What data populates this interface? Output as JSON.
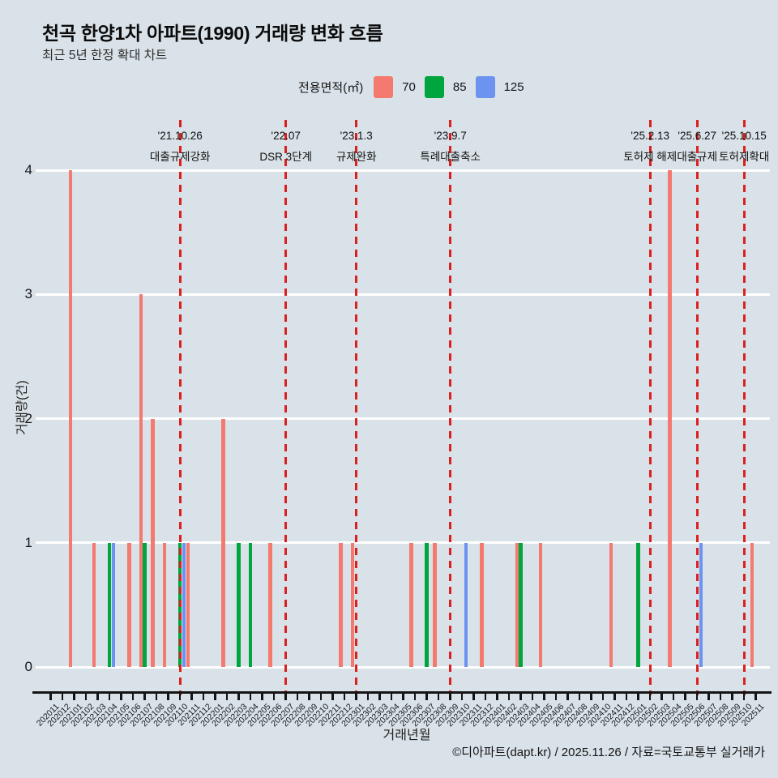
{
  "header": {
    "title": "천곡 한양1차 아파트(1990) 거래량 변화 흐름",
    "subtitle": "최근 5년 한정 확대 차트"
  },
  "legend": {
    "label": "전용면적(㎡)",
    "items": [
      {
        "name": "70",
        "color": "#f4796e"
      },
      {
        "name": "85",
        "color": "#00a63d"
      },
      {
        "name": "125",
        "color": "#6d93f0"
      }
    ]
  },
  "chart_data": {
    "type": "bar",
    "title": "천곡 한양1차 아파트(1990) 거래량 변화 흐름",
    "subtitle": "최근 5년 한정 확대 차트",
    "xlabel": "거래년월",
    "ylabel": "거래량(건)",
    "ylim": [
      0,
      4
    ],
    "yticks": [
      0,
      1,
      2,
      3,
      4
    ],
    "grid": "horizontal-white-on-gray",
    "legend_position": "top",
    "background": "#d9e2e8",
    "categories": [
      "202011",
      "202012",
      "202101",
      "202102",
      "202103",
      "202104",
      "202105",
      "202106",
      "202107",
      "202108",
      "202109",
      "202110",
      "202111",
      "202112",
      "202201",
      "202202",
      "202203",
      "202204",
      "202205",
      "202206",
      "202207",
      "202208",
      "202209",
      "202210",
      "202211",
      "202212",
      "202301",
      "202302",
      "202303",
      "202304",
      "202305",
      "202306",
      "202307",
      "202308",
      "202309",
      "202310",
      "202311",
      "202312",
      "202401",
      "202402",
      "202403",
      "202404",
      "202405",
      "202406",
      "202407",
      "202408",
      "202409",
      "202410",
      "202411",
      "202412",
      "202501",
      "202502",
      "202503",
      "202504",
      "202505",
      "202506",
      "202507",
      "202508",
      "202509",
      "202510",
      "202511"
    ],
    "series": [
      {
        "name": "70",
        "color": "#f4796e",
        "values_by_month": {
          "202101": 4,
          "202103": 1,
          "202106": 1,
          "202107": 3,
          "202108": 2,
          "202109": 1,
          "202111": 1,
          "202202": 2,
          "202206": 1,
          "202212": 1,
          "202301": 1,
          "202306": 1,
          "202308": 1,
          "202312": 1,
          "202403": 1,
          "202405": 1,
          "202411": 1,
          "202504": 4,
          "202511": 1
        }
      },
      {
        "name": "85",
        "color": "#00a63d",
        "values_by_month": {
          "202104": 1,
          "202107": 1,
          "202110": 1,
          "202203": 1,
          "202204": 1,
          "202307": 1,
          "202403": 1,
          "202501": 1
        }
      },
      {
        "name": "125",
        "color": "#6d93f0",
        "values_by_month": {
          "202104": 1,
          "202110": 1,
          "202310": 1,
          "202506": 1
        }
      }
    ],
    "events": [
      {
        "date": "'21.10.26",
        "label": "대출규제강화",
        "month": "202110"
      },
      {
        "date": "'22.07",
        "label": "DSR 3단계",
        "month": "202207"
      },
      {
        "date": "'23.1.3",
        "label": "규제완화",
        "month": "202301"
      },
      {
        "date": "'23.9.7",
        "label": "특례대출축소",
        "month": "202309"
      },
      {
        "date": "'25.2.13",
        "label": "토허제 해제",
        "month": "202502"
      },
      {
        "date": "'25.6.27",
        "label": "대출규제",
        "month": "202506"
      },
      {
        "date": "'25.10.15",
        "label": "토허제확대",
        "month": "202510"
      }
    ],
    "event_line_color": "#dc1f1f"
  },
  "footer": {
    "credit": "©디아파트(dapt.kr) / 2025.11.26 / 자료=국토교통부 실거래가"
  }
}
